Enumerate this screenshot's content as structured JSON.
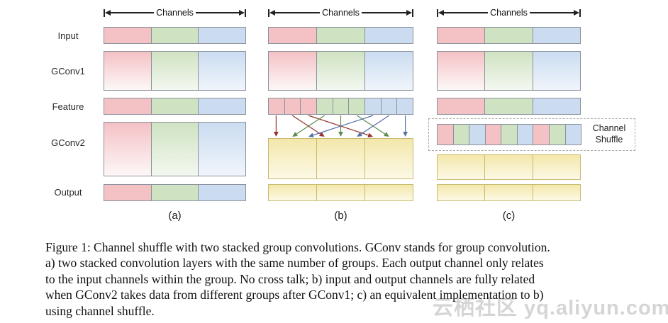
{
  "colors": {
    "red_segment": "#f4c1c5",
    "green_segment": "#cfe2c2",
    "blue_segment": "#cbdcf1",
    "yellow_top": "#f3e7ab",
    "yellow_bottom": "#fcf9e6",
    "yellow_border": "#c9ba6e",
    "segment_border": "#8b919c",
    "arrow_red": "#97322f",
    "arrow_green": "#5f8a4e",
    "arrow_blue": "#5671a8"
  },
  "labels": {
    "channels": "Channels",
    "rows": [
      "Input",
      "GConv1",
      "Feature",
      "GConv2",
      "Output"
    ],
    "shuffle": "Channel Shuffle"
  },
  "panels": {
    "a": {
      "letter": "(a)"
    },
    "b": {
      "letter": "(b)"
    },
    "c": {
      "letter": "(c)"
    }
  },
  "segments": {
    "rgb3": [
      "red",
      "green",
      "blue"
    ],
    "rgb9_grouped": [
      "red",
      "red",
      "red",
      "green",
      "green",
      "green",
      "blue",
      "blue",
      "blue"
    ],
    "rgb9_shuffled": [
      "red",
      "green",
      "blue",
      "red",
      "green",
      "blue",
      "red",
      "green",
      "blue"
    ],
    "yellow3": [
      "yellow",
      "yellow",
      "yellow"
    ]
  },
  "shuffle_arrows": [
    {
      "from": 0,
      "to": 0,
      "color": "red"
    },
    {
      "from": 1,
      "to": 1,
      "color": "red"
    },
    {
      "from": 2,
      "to": 2,
      "color": "red"
    },
    {
      "from": 3,
      "to": 0,
      "color": "green"
    },
    {
      "from": 4,
      "to": 1,
      "color": "green"
    },
    {
      "from": 5,
      "to": 2,
      "color": "green"
    },
    {
      "from": 6,
      "to": 0,
      "color": "blue"
    },
    {
      "from": 7,
      "to": 1,
      "color": "blue"
    },
    {
      "from": 8,
      "to": 2,
      "color": "blue"
    }
  ],
  "caption": {
    "lines": [
      "Figure 1: Channel shuffle with two stacked group convolutions. GConv stands for group convolution.",
      "a) two stacked convolution layers with the same number of groups. Each output channel only relates",
      "to the input channels within the group. No cross talk; b) input and output channels are fully related",
      "when GConv2 takes data from different groups after GConv1; c) an equivalent implementation to b)",
      "using channel shuffle."
    ]
  },
  "watermark": "云栖社区 yq.aliyun.com"
}
